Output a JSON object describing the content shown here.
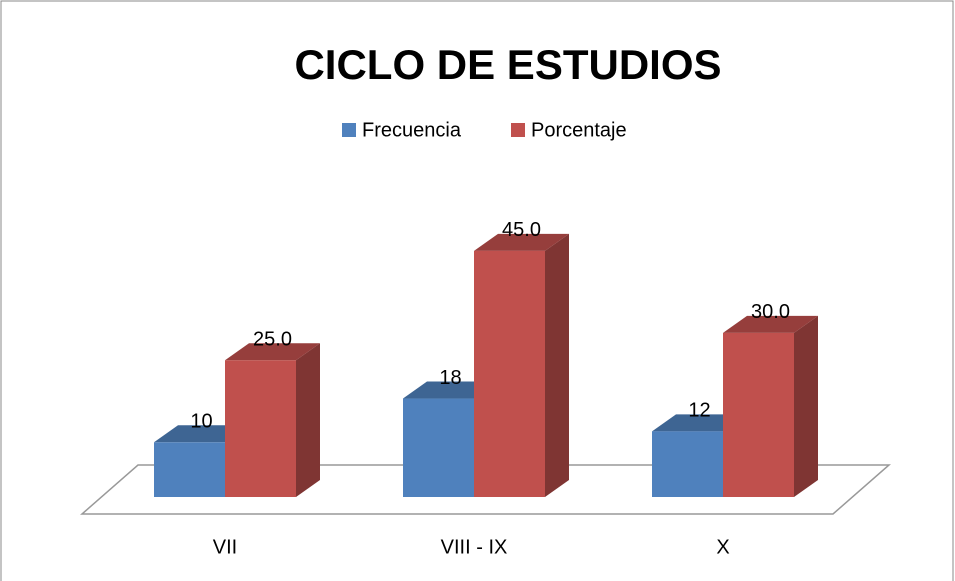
{
  "chart_data": {
    "type": "bar3d",
    "title": "CICLO DE ESTUDIOS",
    "categories": [
      "VII",
      "VIII - IX",
      "X"
    ],
    "series": [
      {
        "name": "Frecuencia",
        "color": "#4f81bd",
        "values": [
          10,
          18,
          12
        ]
      },
      {
        "name": "Porcentaje",
        "color": "#c0504d",
        "values": [
          25,
          45,
          30
        ],
        "value_labels": [
          "25.0",
          "45.0",
          "30.0"
        ]
      }
    ],
    "legend": "top"
  }
}
